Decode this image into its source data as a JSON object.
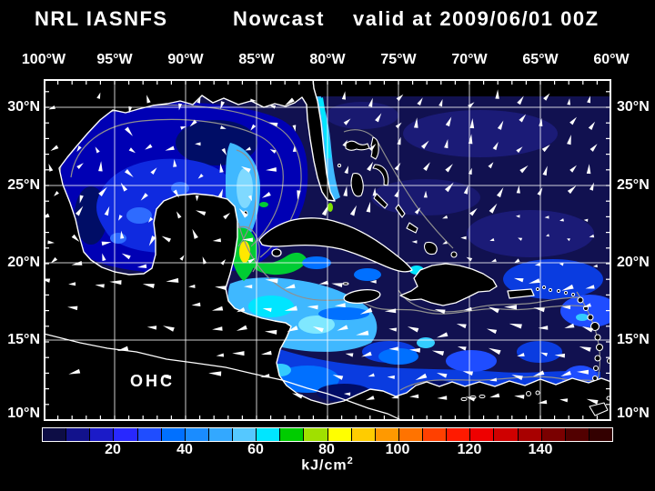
{
  "title": {
    "system": "NRL IASNFS",
    "product": "Nowcast",
    "valid": "valid at 2009/06/01 00Z"
  },
  "axes": {
    "lon_labels": [
      "100°W",
      "95°W",
      "90°W",
      "85°W",
      "80°W",
      "75°W",
      "70°W",
      "65°W",
      "60°W"
    ],
    "lat_labels": [
      "30°N",
      "25°N",
      "20°N",
      "15°N",
      "10°N"
    ]
  },
  "map": {
    "field_label": "OHC"
  },
  "colorbar": {
    "tick_labels": [
      "20",
      "40",
      "60",
      "80",
      "100",
      "120",
      "140"
    ],
    "unit_base": "kJ/cm",
    "unit_exponent": "2",
    "value_min": 0,
    "value_max": 160,
    "colors": [
      "#0d0d45",
      "#12128c",
      "#1b1bc8",
      "#2828ff",
      "#1f4dff",
      "#0070ff",
      "#1a8cff",
      "#33a8ff",
      "#55c8ff",
      "#00e6ff",
      "#00cc00",
      "#a0e000",
      "#ffff00",
      "#ffcc00",
      "#ff9900",
      "#ff7300",
      "#ff4000",
      "#ff1a00",
      "#ee0000",
      "#cf0000",
      "#a80000",
      "#7a0000",
      "#520000",
      "#330000"
    ]
  },
  "arrows": {
    "color": "#ffffff",
    "seed": 20090601
  }
}
